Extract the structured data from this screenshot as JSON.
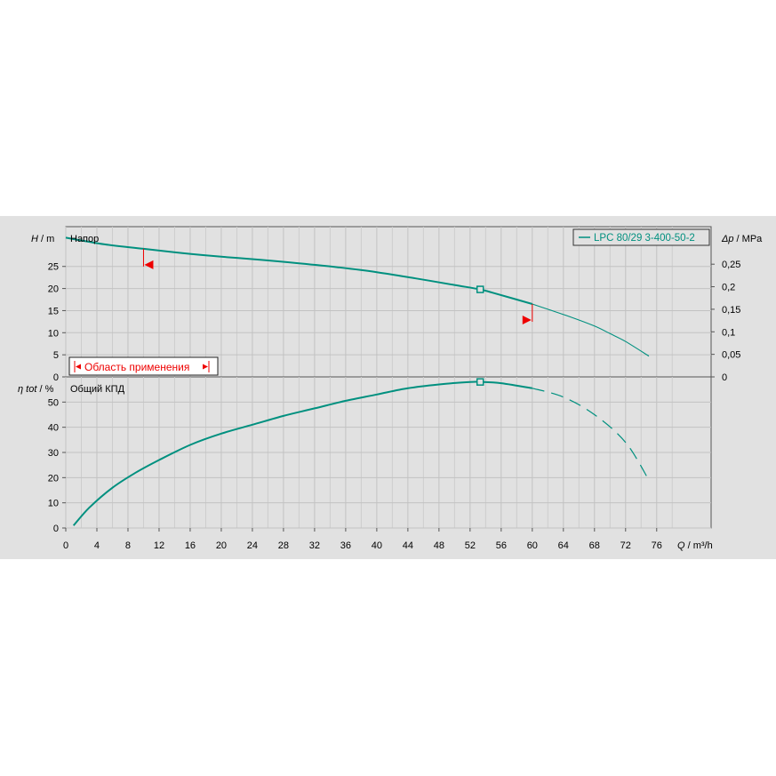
{
  "chart_data": [
    {
      "type": "line",
      "panel": "head",
      "xlabel": "Q / m³/h",
      "ylabel": "H / m",
      "ylabel_right": "Δp / MPa",
      "in_plot_label": "Напор",
      "x_ticks": [
        "0",
        "4",
        "8",
        "12",
        "16",
        "20",
        "24",
        "28",
        "32",
        "36",
        "40",
        "44",
        "48",
        "52",
        "56",
        "60",
        "64",
        "68",
        "72",
        "76"
      ],
      "y_ticks": [
        "0",
        "5",
        "10",
        "15",
        "20",
        "25"
      ],
      "y_ticks_right": [
        "0",
        "0,05",
        "0,1",
        "0,15",
        "0,2",
        "0,25"
      ],
      "xlim": [
        0,
        83
      ],
      "ylim": [
        0,
        34
      ],
      "grid": true,
      "legend_position": "top-right",
      "operating_range_label": "Область применения",
      "operating_range_x": [
        10,
        60
      ],
      "series": [
        {
          "name": "LPC 80/29 3-400-50-2",
          "color": "#00907f",
          "x": [
            0,
            5,
            10,
            15,
            20,
            25,
            30,
            35,
            40,
            45,
            50,
            53.3,
            55,
            60
          ],
          "y": [
            31.5,
            30.0,
            29.0,
            28.0,
            27.2,
            26.5,
            25.7,
            24.8,
            23.7,
            22.3,
            20.8,
            19.8,
            19.0,
            16.5
          ]
        },
        {
          "name": "",
          "color": "#00907f",
          "thin": true,
          "x": [
            60,
            62,
            65,
            68,
            70,
            72,
            75
          ],
          "y": [
            16.5,
            15.3,
            13.5,
            11.5,
            9.8,
            8.0,
            4.7
          ]
        }
      ],
      "duty_point": {
        "x": 53.3,
        "y": 19.8
      }
    },
    {
      "type": "line",
      "panel": "efficiency",
      "xlabel": "Q / m³/h",
      "ylabel": "η tot / %",
      "in_plot_label": "Общий КПД",
      "y_ticks": [
        "0",
        "10",
        "20",
        "30",
        "40",
        "50"
      ],
      "xlim": [
        0,
        83
      ],
      "ylim": [
        0,
        60
      ],
      "grid": true,
      "series": [
        {
          "name": "",
          "color": "#00907f",
          "x": [
            1,
            3,
            6,
            9,
            12,
            16,
            20,
            24,
            28,
            32,
            36,
            40,
            44,
            48,
            52,
            53.3,
            56,
            60
          ],
          "y": [
            1,
            8,
            16,
            22,
            27,
            33,
            37.5,
            41,
            44.5,
            47.5,
            50.5,
            53,
            55.5,
            57,
            58,
            58,
            57.5,
            55.5
          ]
        },
        {
          "name": "",
          "color": "#00907f",
          "dashed": true,
          "x": [
            60,
            64,
            68,
            72,
            75
          ],
          "y": [
            55.5,
            52,
            45,
            34,
            19
          ]
        }
      ],
      "duty_point": {
        "x": 53.3,
        "y": 58
      }
    }
  ]
}
